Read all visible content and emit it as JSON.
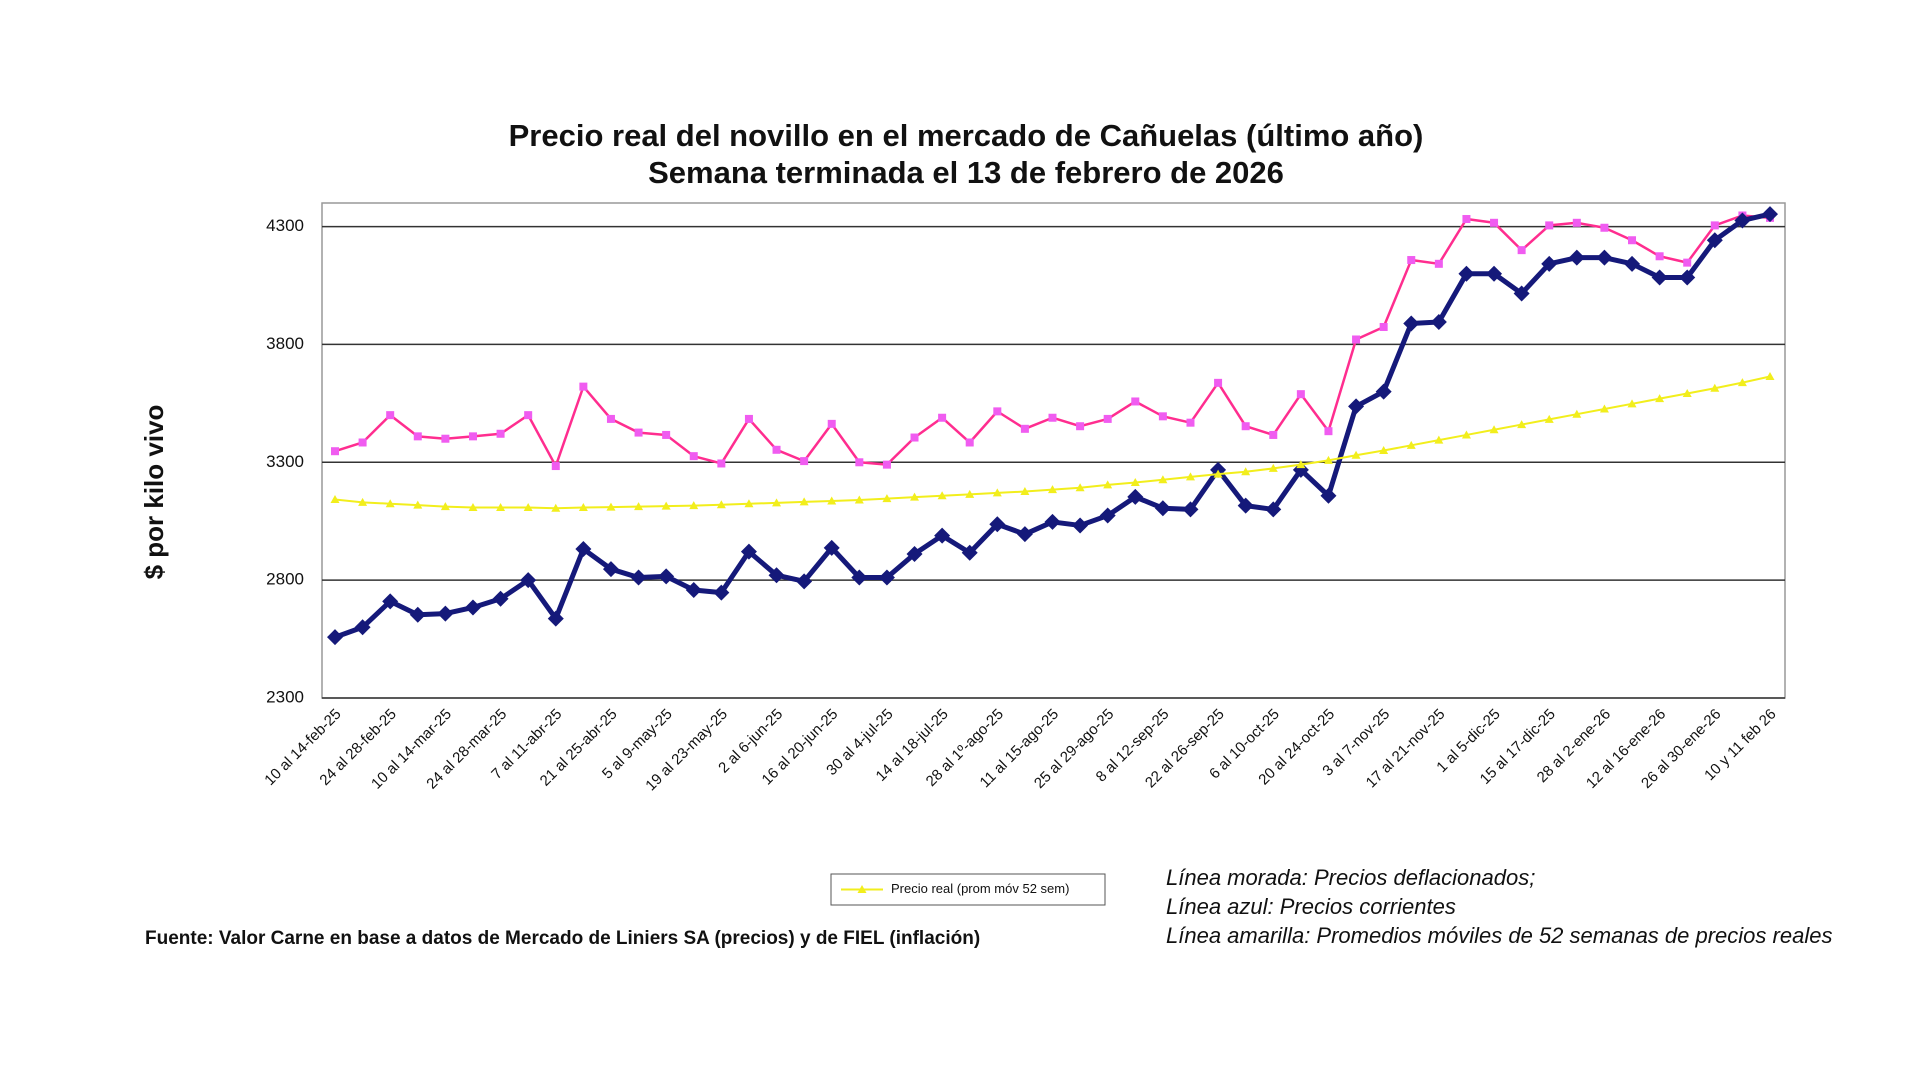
{
  "chart_data": {
    "type": "line",
    "title": "Precio real del novillo en el mercado de Cañuelas (último año)",
    "subtitle": "Semana terminada el 13 de febrero de 2026",
    "y_label": "$ por kilo vivo",
    "categories": [
      "10 al 14-feb-25",
      null,
      "24 al 28-feb-25",
      null,
      "10 al 14-mar-25",
      null,
      "24 al 28-mar-25",
      null,
      "7 al 11-abr-25",
      null,
      "21 al 25-abr-25",
      null,
      "5 al 9-may-25",
      null,
      "19 al 23-may-25",
      null,
      "2 al 6-jun-25",
      null,
      "16 al 20-jun-25",
      null,
      "30 al 4-jul-25",
      null,
      "14 al 18-jul-25",
      null,
      "28 al 1º-ago-25",
      null,
      "11 al 15-ago-25",
      null,
      "25 al 29-ago-25",
      null,
      "8 al 12-sep-25",
      null,
      "22 al 26-sep-25",
      null,
      "6 al 10-oct-25",
      null,
      "20 al 24-oct-25",
      null,
      "3 al 7-nov-25",
      null,
      "17 al 21-nov-25",
      null,
      "1 al 5-dic-25",
      null,
      "15 al 17-dic-25",
      null,
      "28 al 2-ene-26",
      null,
      "12 al 16-ene-26",
      null,
      "26 al 30-ene-26",
      null,
      "10 y 11 feb 26"
    ],
    "series": [
      {
        "color": "#ff2d8f",
        "marker": "square",
        "marker_color": "#f05cf0",
        "width": 2.5,
        "values": [
          3347,
          3384,
          3500,
          3410,
          3400,
          3410,
          3421,
          3500,
          3284,
          3621,
          3484,
          3426,
          3416,
          3326,
          3295,
          3484,
          3353,
          3305,
          3463,
          3300,
          3290,
          3405,
          3489,
          3384,
          3516,
          3442,
          3489,
          3453,
          3484,
          3558,
          3495,
          3468,
          3637,
          3453,
          3416,
          3589,
          3432,
          3821,
          3874,
          4158,
          4142,
          4332,
          4316,
          4200,
          4305,
          4316,
          4295,
          4242,
          4174,
          4147,
          4305,
          4347,
          4337
        ]
      },
      {
        "color": "#15197a",
        "marker": "diamond",
        "marker_color": "#15197a",
        "width": 5,
        "values": [
          2558,
          2600,
          2710,
          2653,
          2658,
          2684,
          2721,
          2800,
          2637,
          2932,
          2847,
          2811,
          2816,
          2758,
          2747,
          2921,
          2821,
          2795,
          2937,
          2811,
          2811,
          2911,
          2989,
          2916,
          3037,
          2995,
          3047,
          3032,
          3074,
          3153,
          3105,
          3100,
          3268,
          3116,
          3100,
          3268,
          3158,
          3537,
          3600,
          3889,
          3895,
          4100,
          4100,
          4016,
          4142,
          4168,
          4168,
          4142,
          4084,
          4084,
          4242,
          4326,
          4353
        ]
      },
      {
        "name": "Precio real (prom móv 52 sem)",
        "color": "#f2ee1c",
        "marker": "triangle",
        "marker_color": "#f2ee1c",
        "width": 2,
        "values": [
          3142,
          3130,
          3124,
          3118,
          3112,
          3108,
          3108,
          3108,
          3105,
          3108,
          3110,
          3112,
          3114,
          3116,
          3120,
          3124,
          3128,
          3132,
          3136,
          3140,
          3146,
          3152,
          3158,
          3164,
          3170,
          3176,
          3184,
          3192,
          3204,
          3214,
          3226,
          3238,
          3250,
          3260,
          3274,
          3290,
          3308,
          3330,
          3350,
          3372,
          3394,
          3416,
          3438,
          3460,
          3482,
          3504,
          3526,
          3548,
          3570,
          3592,
          3614,
          3638,
          3664
        ]
      }
    ],
    "ylim": [
      2300,
      4400
    ],
    "yticks": [
      2300,
      2800,
      3300,
      3800,
      4300
    ],
    "grid": true,
    "legend": "bottom",
    "source": "Fuente: Valor Carne en base a datos de Mercado de Liniers SA (precios) y de FIEL (inflación)",
    "notes": [
      "Línea morada: Precios deflacionados;",
      "Línea azul: Precios corrientes",
      "Línea amarilla: Promedios móviles de 52 semanas de precios reales"
    ]
  }
}
